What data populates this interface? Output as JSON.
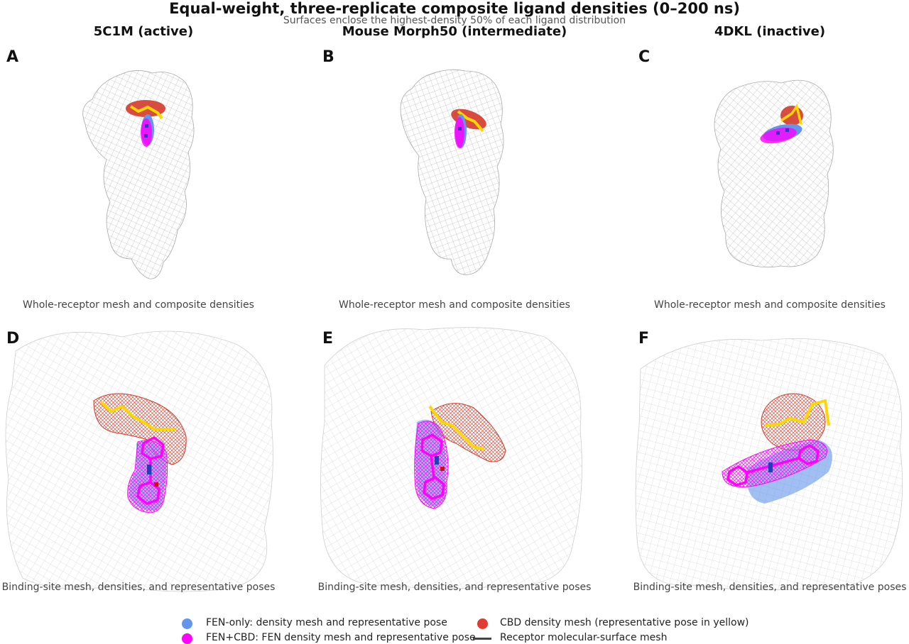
{
  "figure": {
    "title": "Equal-weight, three-replicate composite ligand densities (0–200 ns)",
    "subtitle": "Surfaces enclose the highest-density 50% of each ligand distribution"
  },
  "columns": [
    {
      "title": "5C1M (active)"
    },
    {
      "title": "Mouse Morph50 (intermediate)"
    },
    {
      "title": "4DKL (inactive)"
    }
  ],
  "panels": [
    {
      "letter": "A",
      "caption": "Whole-receptor mesh and composite densities"
    },
    {
      "letter": "B",
      "caption": "Whole-receptor mesh and composite densities"
    },
    {
      "letter": "C",
      "caption": "Whole-receptor mesh and composite densities"
    },
    {
      "letter": "D",
      "caption": "Binding-site mesh, densities, and representative poses"
    },
    {
      "letter": "E",
      "caption": "Binding-site mesh, densities, and representative poses"
    },
    {
      "letter": "F",
      "caption": "Binding-site mesh, densities, and representative poses"
    }
  ],
  "legend": {
    "fen_only": {
      "label": "FEN-only: density mesh and representative pose",
      "color": "#6495ed"
    },
    "fen_cbd": {
      "label": "FEN+CBD: FEN density mesh and representative pose",
      "color": "#ff00ff"
    },
    "cbd": {
      "label": "CBD density mesh (representative pose in yellow)",
      "color": "#e03c31"
    },
    "receptor": {
      "label": "Receptor molecular-surface mesh",
      "color": "#444444"
    }
  },
  "colors": {
    "mesh_gray": "#9a9a9a",
    "cbd_pose": "#ffd700",
    "fen_pose_atoms": "#1f3fbf",
    "oxygen": "#d01010"
  }
}
